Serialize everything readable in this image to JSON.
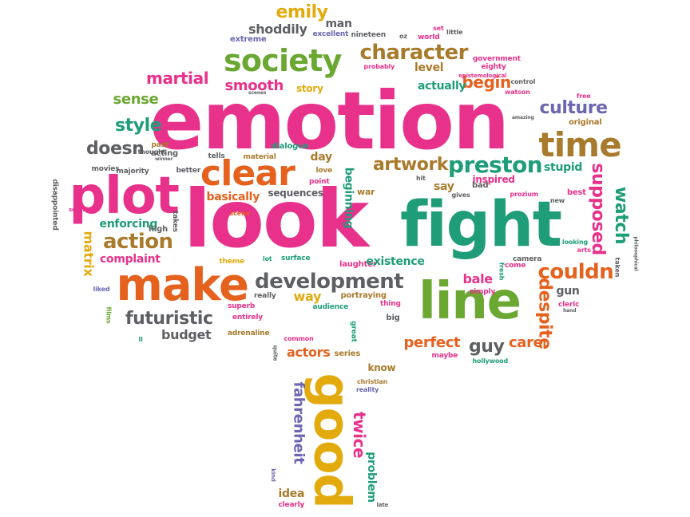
{
  "palette": {
    "pink": "#e8318b",
    "green": "#1e9d78",
    "lime": "#6aa832",
    "orange": "#e5611e",
    "yellow": "#e2aa0c",
    "brown": "#a87a2b",
    "gray": "#5d5f62",
    "purple": "#6b66b0",
    "teal": "#1d9ea8"
  },
  "words": [
    "emotion",
    "look",
    "fight",
    "plot",
    "line",
    "make",
    "clear",
    "time",
    "society",
    "good",
    "character",
    "development",
    "preston",
    "artwork",
    "action",
    "couldn",
    "culture",
    "style",
    "futuristic",
    "doesn",
    "martial",
    "smooth",
    "begin",
    "sense",
    "watch",
    "supposed",
    "despite",
    "perfect",
    "guy",
    "care",
    "bale",
    "emily",
    "shoddily",
    "man",
    "extreme",
    "excellent",
    "nineteen",
    "oz",
    "set",
    "little",
    "world",
    "government",
    "eighty",
    "probably",
    "epistemological",
    "story",
    "level",
    "actually",
    "control",
    "watson",
    "free",
    "amazing",
    "original",
    "stupid",
    "inspired",
    "say",
    "hit",
    "gives",
    "bad",
    "prozium",
    "best",
    "new",
    "looking",
    "arts",
    "taken",
    "philosophical",
    "basically",
    "sequences",
    "beginning",
    "war",
    "point",
    "love",
    "day",
    "dialogue",
    "material",
    "tells",
    "acting",
    "winner",
    "past",
    "thought",
    "better",
    "majority",
    "movies",
    "disappointed",
    "science",
    "matrix",
    "enforcing",
    "high",
    "takes",
    "complaint",
    "theme",
    "lot",
    "surface",
    "laughter",
    "existence",
    "camera",
    "fresh",
    "come",
    "simply",
    "gun",
    "cleric",
    "hand",
    "really",
    "way",
    "portraying",
    "thing",
    "superb",
    "audience",
    "entirely",
    "adrenaline",
    "budget",
    "films",
    "big",
    "common",
    "great",
    "quite",
    "actors",
    "series",
    "maybe",
    "hollywood",
    "know",
    "christian",
    "reality",
    "fahrenheit",
    "twice",
    "kind",
    "idea",
    "problem",
    "clearly",
    "late",
    "liked",
    "ll",
    "scenes",
    "scene"
  ]
}
